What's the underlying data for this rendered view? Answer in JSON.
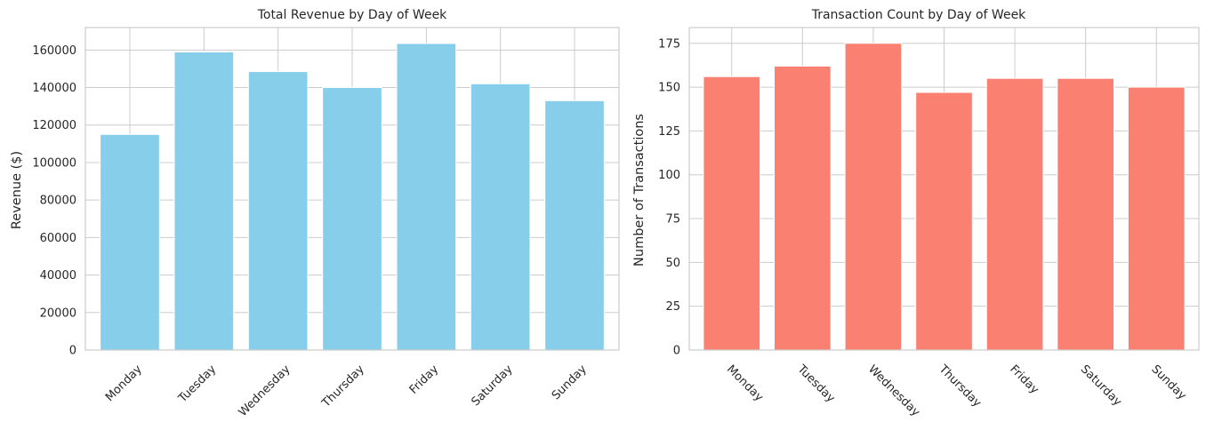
{
  "chart_data": [
    {
      "type": "bar",
      "title": "Total Revenue by Day of Week",
      "xlabel": "",
      "ylabel": "Revenue ($)",
      "categories": [
        "Monday",
        "Tuesday",
        "Wednesday",
        "Thursday",
        "Friday",
        "Saturday",
        "Sunday"
      ],
      "values": [
        115000,
        159000,
        148500,
        140000,
        163500,
        142000,
        133000
      ],
      "ylim": [
        0,
        172000
      ],
      "yticks": [
        0,
        20000,
        40000,
        60000,
        80000,
        100000,
        120000,
        140000,
        160000
      ],
      "tick_rotation": 45,
      "color": "#87ceeb",
      "grid": true
    },
    {
      "type": "bar",
      "title": "Transaction Count by Day of Week",
      "xlabel": "",
      "ylabel": "Number of Transactions",
      "categories": [
        "Monday",
        "Tuesday",
        "Wednesday",
        "Thursday",
        "Friday",
        "Saturday",
        "Sunday"
      ],
      "values": [
        156,
        162,
        175,
        147,
        155,
        155,
        150
      ],
      "ylim": [
        0,
        184
      ],
      "yticks": [
        0,
        25,
        50,
        75,
        100,
        125,
        150,
        175
      ],
      "tick_rotation": -45,
      "color": "#fa8072",
      "grid": true
    }
  ]
}
